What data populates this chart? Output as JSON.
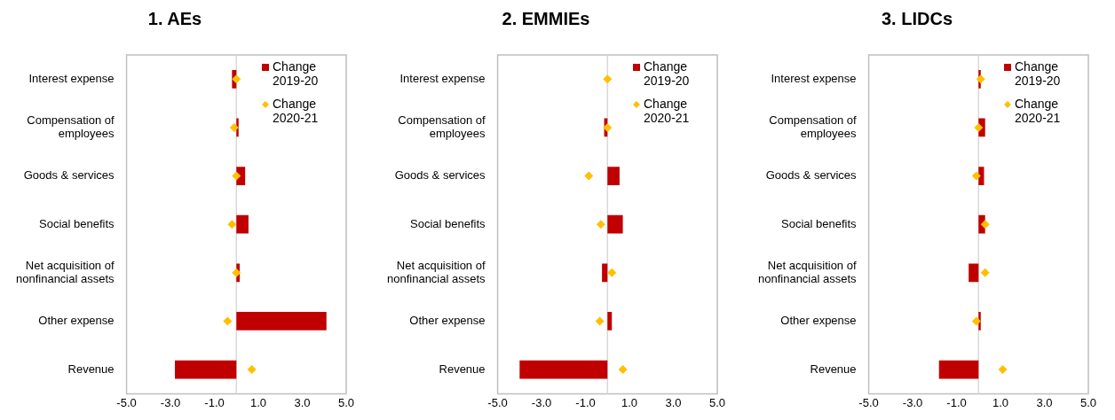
{
  "chart_data": [
    {
      "type": "bar",
      "orientation": "horizontal",
      "title": "1. AEs",
      "categories": [
        "Interest expense",
        "Compensation of employees",
        "Goods & services",
        "Social benefits",
        "Net acquisition of nonfinancial assets",
        "Other expense",
        "Revenue"
      ],
      "series": [
        {
          "name": "Change 2019-20",
          "color": "#c00000",
          "values": [
            -0.2,
            0.1,
            0.4,
            0.55,
            0.15,
            4.1,
            -2.8
          ]
        },
        {
          "name": "Change 2020-21",
          "type": "scatter",
          "color": "#ffc000",
          "values": [
            0.0,
            -0.1,
            0.0,
            -0.2,
            0.0,
            -0.4,
            0.7
          ]
        }
      ],
      "xlim": [
        -5,
        5
      ],
      "xticks": [
        {
          "value": -5,
          "label": "-5.0"
        },
        {
          "value": -3,
          "label": "-3.0"
        },
        {
          "value": -1,
          "label": "-1.0"
        },
        {
          "value": 1,
          "label": "1.0"
        },
        {
          "value": 3,
          "label": "3.0"
        },
        {
          "value": 5,
          "label": "5.0"
        }
      ],
      "ref_lines": [
        {
          "axis": "x",
          "value": 0,
          "color": "#d9d9d9"
        }
      ],
      "marker": "diamond",
      "legend": "top right",
      "grid": false
    },
    {
      "type": "bar",
      "orientation": "horizontal",
      "title": "2. EMMIEs",
      "categories": [
        "Interest expense",
        "Compensation of employees",
        "Goods & services",
        "Social benefits",
        "Net acquisition of nonfinancial assets",
        "Other expense",
        "Revenue"
      ],
      "series": [
        {
          "name": "Change 2019-20",
          "color": "#c00000",
          "values": [
            0.0,
            -0.15,
            0.55,
            0.7,
            -0.25,
            0.2,
            -4.0
          ]
        },
        {
          "name": "Change 2020-21",
          "type": "scatter",
          "color": "#ffc000",
          "values": [
            0.0,
            0.0,
            -0.85,
            -0.3,
            0.2,
            -0.35,
            0.7
          ]
        }
      ],
      "xlim": [
        -5,
        5
      ],
      "xticks": [
        {
          "value": -5,
          "label": "-5.0"
        },
        {
          "value": -3,
          "label": "-3.0"
        },
        {
          "value": -1,
          "label": "-1.0"
        },
        {
          "value": 1,
          "label": "1.0"
        },
        {
          "value": 3,
          "label": "3.0"
        },
        {
          "value": 5,
          "label": "5.0"
        }
      ],
      "ref_lines": [
        {
          "axis": "x",
          "value": 0,
          "color": "#d9d9d9"
        }
      ],
      "marker": "diamond",
      "legend": "top right",
      "grid": false
    },
    {
      "type": "bar",
      "orientation": "horizontal",
      "title": "3. LIDCs",
      "categories": [
        "Interest expense",
        "Compensation of employees",
        "Goods & services",
        "Social benefits",
        "Net acquisition of nonfinancial assets",
        "Other expense",
        "Revenue"
      ],
      "series": [
        {
          "name": "Change 2019-20",
          "color": "#c00000",
          "values": [
            0.1,
            0.3,
            0.25,
            0.3,
            -0.45,
            0.1,
            -1.8
          ]
        },
        {
          "name": "Change 2020-21",
          "type": "scatter",
          "color": "#ffc000",
          "values": [
            0.1,
            0.0,
            -0.1,
            0.3,
            0.3,
            -0.1,
            1.1
          ]
        }
      ],
      "xlim": [
        -5,
        5
      ],
      "xticks": [
        {
          "value": -5,
          "label": "-5.0"
        },
        {
          "value": -3,
          "label": "-3.0"
        },
        {
          "value": -1,
          "label": "-1.0"
        },
        {
          "value": 1,
          "label": "1.0"
        },
        {
          "value": 3,
          "label": "3.0"
        },
        {
          "value": 5,
          "label": "5.0"
        }
      ],
      "ref_lines": [
        {
          "axis": "x",
          "value": 0,
          "color": "#d9d9d9"
        }
      ],
      "marker": "diamond",
      "legend": "top right",
      "grid": false
    }
  ]
}
